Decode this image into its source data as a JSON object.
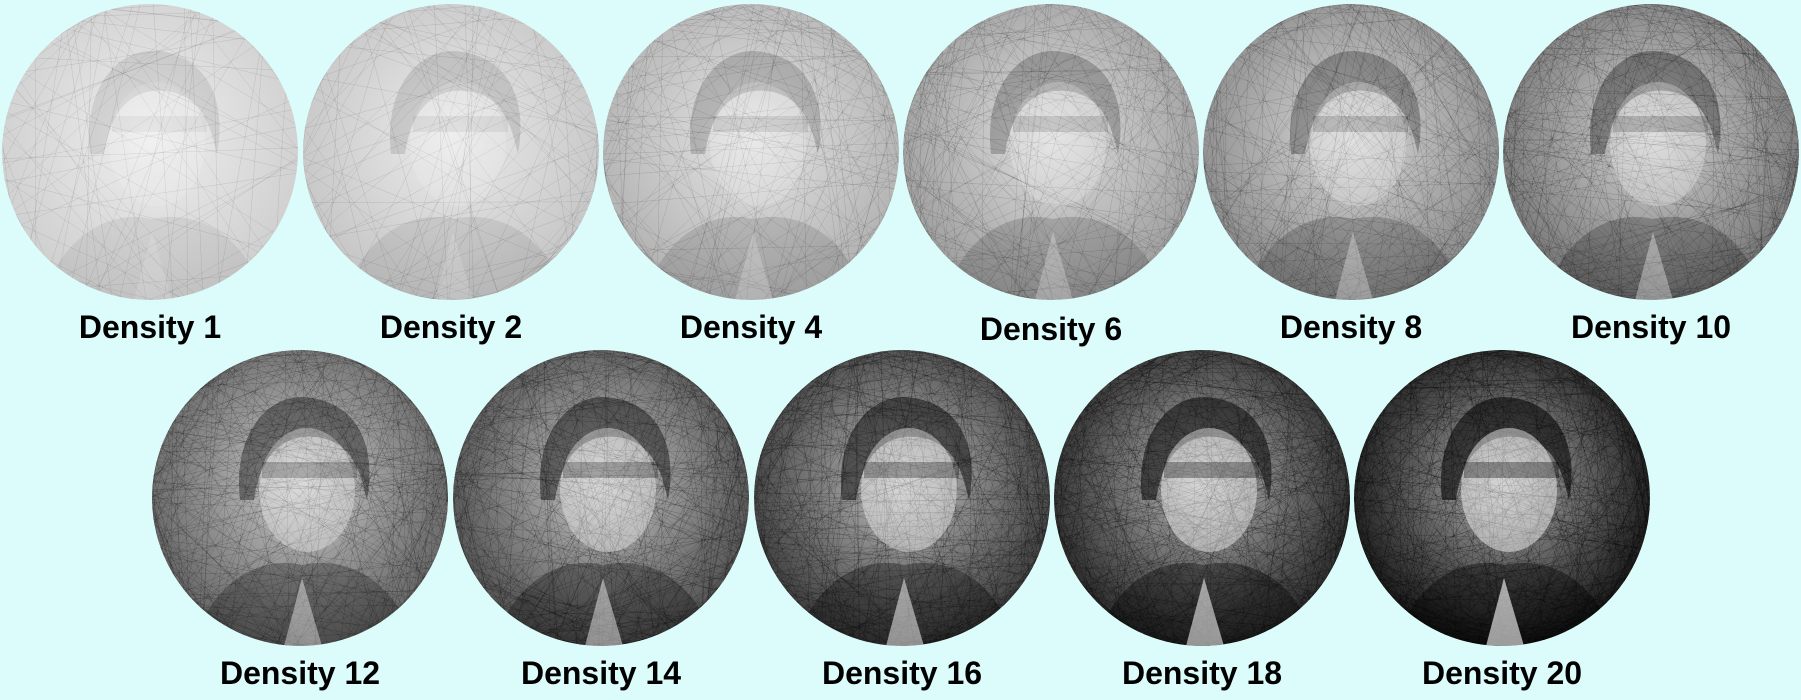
{
  "panels": [
    {
      "caption": "Density 1",
      "density": 1
    },
    {
      "caption": "Density 2",
      "density": 2
    },
    {
      "caption": "Density 4",
      "density": 4
    },
    {
      "caption": "Density 6",
      "density": 6
    },
    {
      "caption": "Density 8",
      "density": 8
    },
    {
      "caption": "Density 10",
      "density": 10
    },
    {
      "caption": "Density 12",
      "density": 12
    },
    {
      "caption": "Density 14",
      "density": 14
    },
    {
      "caption": "Density 16",
      "density": 16
    },
    {
      "caption": "Density 18",
      "density": 18
    },
    {
      "caption": "Density 20",
      "density": 20
    }
  ],
  "colors": {
    "background": "#dcfbfb",
    "thread": "#000000",
    "canvas": "#ffffff"
  }
}
